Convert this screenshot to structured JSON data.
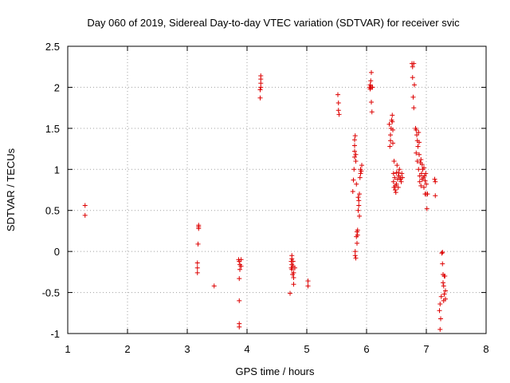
{
  "chart_data": {
    "type": "scatter",
    "title": "Day 060 of 2019, Sidereal Day-to-day VTEC variation (SDTVAR) for receiver svic",
    "xlabel": "GPS time / hours",
    "ylabel": "SDTVAR / TECUs",
    "xlim": [
      1,
      8
    ],
    "ylim": [
      -1,
      2.5
    ],
    "xticks": [
      "1",
      "2",
      "3",
      "4",
      "5",
      "6",
      "7",
      "8"
    ],
    "yticks": [
      "-1",
      "-0.5",
      "0",
      "0.5",
      "1",
      "1.5",
      "2",
      "2.5"
    ],
    "grid": true,
    "marker": "+",
    "color": "#dd0000",
    "series": [
      {
        "name": "SDTVAR",
        "points": [
          [
            1.29,
            0.56
          ],
          [
            1.29,
            0.44
          ],
          [
            3.17,
            -0.14
          ],
          [
            3.17,
            -0.2
          ],
          [
            3.17,
            -0.26
          ],
          [
            3.18,
            0.09
          ],
          [
            3.19,
            0.28
          ],
          [
            3.19,
            0.3
          ],
          [
            3.19,
            0.32
          ],
          [
            3.45,
            -0.42
          ],
          [
            3.86,
            -0.1
          ],
          [
            3.87,
            -0.12
          ],
          [
            3.87,
            -0.33
          ],
          [
            3.87,
            -0.6
          ],
          [
            3.87,
            -0.88
          ],
          [
            3.87,
            -0.92
          ],
          [
            3.88,
            -0.16
          ],
          [
            3.88,
            -0.22
          ],
          [
            3.9,
            -0.1
          ],
          [
            3.9,
            -0.18
          ],
          [
            4.22,
            1.87
          ],
          [
            4.22,
            1.97
          ],
          [
            4.23,
            2.0
          ],
          [
            4.23,
            2.05
          ],
          [
            4.23,
            2.1
          ],
          [
            4.23,
            2.14
          ],
          [
            4.72,
            -0.51
          ],
          [
            4.74,
            -0.12
          ],
          [
            4.74,
            -0.2
          ],
          [
            4.75,
            -0.05
          ],
          [
            4.75,
            -0.09
          ],
          [
            4.75,
            -0.16
          ],
          [
            4.75,
            -0.22
          ],
          [
            4.76,
            -0.28
          ],
          [
            4.77,
            -0.12
          ],
          [
            4.77,
            -0.18
          ],
          [
            4.78,
            -0.26
          ],
          [
            4.78,
            -0.32
          ],
          [
            4.78,
            -0.4
          ],
          [
            4.8,
            -0.2
          ],
          [
            5.02,
            -0.36
          ],
          [
            5.02,
            -0.42
          ],
          [
            5.52,
            1.91
          ],
          [
            5.53,
            1.81
          ],
          [
            5.53,
            1.72
          ],
          [
            5.54,
            1.67
          ],
          [
            5.77,
            0.73
          ],
          [
            5.78,
            0.87
          ],
          [
            5.79,
            1.0
          ],
          [
            5.8,
            1.15
          ],
          [
            5.8,
            1.22
          ],
          [
            5.8,
            1.29
          ],
          [
            5.8,
            1.36
          ],
          [
            5.81,
            1.41
          ],
          [
            5.81,
            0.0
          ],
          [
            5.81,
            -0.05
          ],
          [
            5.82,
            -0.08
          ],
          [
            5.82,
            1.1
          ],
          [
            5.82,
            1.18
          ],
          [
            5.83,
            0.82
          ],
          [
            5.83,
            0.18
          ],
          [
            5.84,
            0.24
          ],
          [
            5.84,
            0.1
          ],
          [
            5.85,
            0.26
          ],
          [
            5.85,
            0.2
          ],
          [
            5.86,
            0.66
          ],
          [
            5.86,
            0.5
          ],
          [
            5.87,
            0.56
          ],
          [
            5.87,
            0.62
          ],
          [
            5.88,
            0.43
          ],
          [
            5.88,
            0.7
          ],
          [
            5.89,
            0.9
          ],
          [
            5.9,
            0.95
          ],
          [
            5.9,
            1.0
          ],
          [
            5.91,
            0.98
          ],
          [
            5.92,
            1.05
          ],
          [
            6.05,
            2.0
          ],
          [
            6.06,
            2.03
          ],
          [
            6.06,
            1.98
          ],
          [
            6.07,
            2.0
          ],
          [
            6.07,
            2.08
          ],
          [
            6.08,
            2.0
          ],
          [
            6.08,
            2.18
          ],
          [
            6.08,
            1.82
          ],
          [
            6.09,
            1.7
          ],
          [
            6.1,
            2.0
          ],
          [
            6.38,
            1.55
          ],
          [
            6.39,
            1.28
          ],
          [
            6.4,
            1.35
          ],
          [
            6.4,
            1.42
          ],
          [
            6.41,
            1.5
          ],
          [
            6.42,
            1.6
          ],
          [
            6.43,
            1.66
          ],
          [
            6.43,
            1.58
          ],
          [
            6.44,
            1.48
          ],
          [
            6.44,
            1.32
          ],
          [
            6.45,
            0.95
          ],
          [
            6.45,
            0.85
          ],
          [
            6.46,
            0.78
          ],
          [
            6.46,
            1.1
          ],
          [
            6.47,
            0.9
          ],
          [
            6.48,
            0.8
          ],
          [
            6.48,
            0.75
          ],
          [
            6.49,
            0.72
          ],
          [
            6.5,
            0.82
          ],
          [
            6.5,
            0.96
          ],
          [
            6.51,
            1.05
          ],
          [
            6.52,
            0.88
          ],
          [
            6.53,
            0.78
          ],
          [
            6.53,
            0.96
          ],
          [
            6.54,
            0.92
          ],
          [
            6.55,
            1.0
          ],
          [
            6.56,
            0.88
          ],
          [
            6.57,
            0.9
          ],
          [
            6.58,
            0.85
          ],
          [
            6.59,
            0.95
          ],
          [
            6.6,
            0.9
          ],
          [
            6.76,
            2.29
          ],
          [
            6.77,
            2.25
          ],
          [
            6.77,
            2.12
          ],
          [
            6.78,
            1.88
          ],
          [
            6.79,
            1.75
          ],
          [
            6.79,
            2.29
          ],
          [
            6.8,
            2.03
          ],
          [
            6.82,
            1.5
          ],
          [
            6.83,
            1.48
          ],
          [
            6.83,
            1.2
          ],
          [
            6.84,
            1.42
          ],
          [
            6.85,
            1.35
          ],
          [
            6.85,
            1.1
          ],
          [
            6.86,
            1.28
          ],
          [
            6.87,
            1.45
          ],
          [
            6.87,
            1.0
          ],
          [
            6.88,
            1.33
          ],
          [
            6.88,
            1.18
          ],
          [
            6.89,
            0.92
          ],
          [
            6.89,
            0.85
          ],
          [
            6.9,
            1.08
          ],
          [
            6.91,
            1.12
          ],
          [
            6.91,
            0.8
          ],
          [
            6.92,
            0.95
          ],
          [
            6.93,
            1.06
          ],
          [
            6.93,
            0.88
          ],
          [
            6.94,
            1.0
          ],
          [
            6.95,
            0.9
          ],
          [
            6.96,
            1.02
          ],
          [
            6.96,
            0.78
          ],
          [
            6.97,
            0.92
          ],
          [
            6.98,
            0.86
          ],
          [
            6.98,
            0.7
          ],
          [
            6.99,
            0.95
          ],
          [
            7.0,
            0.82
          ],
          [
            7.0,
            0.7
          ],
          [
            7.01,
            0.52
          ],
          [
            7.02,
            0.7
          ],
          [
            7.14,
            0.88
          ],
          [
            7.15,
            0.85
          ],
          [
            7.15,
            0.68
          ],
          [
            7.22,
            -0.72
          ],
          [
            7.23,
            -0.95
          ],
          [
            7.23,
            -0.64
          ],
          [
            7.24,
            -0.82
          ],
          [
            7.25,
            -0.55
          ],
          [
            7.26,
            -0.02
          ],
          [
            7.27,
            -0.01
          ],
          [
            7.27,
            -0.15
          ],
          [
            7.28,
            -0.28
          ],
          [
            7.28,
            -0.38
          ],
          [
            7.29,
            -0.42
          ],
          [
            7.29,
            -0.6
          ],
          [
            7.3,
            -0.3
          ],
          [
            7.3,
            -0.52
          ],
          [
            7.31,
            -0.3
          ],
          [
            7.32,
            -0.48
          ],
          [
            7.32,
            -0.58
          ]
        ]
      }
    ]
  }
}
